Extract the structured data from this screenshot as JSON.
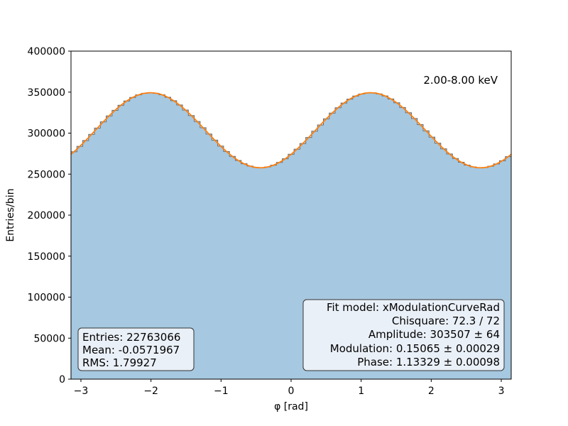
{
  "chart_data": {
    "type": "histogram",
    "xlabel": "φ [rad]",
    "ylabel": "Entries/bin",
    "xlim": [
      -3.14159,
      3.14159
    ],
    "ylim": [
      0,
      400000
    ],
    "x_ticks": [
      -3,
      -2,
      -1,
      0,
      1,
      2,
      3
    ],
    "x_tick_labels": [
      "−3",
      "−2",
      "−1",
      "0",
      "1",
      "2",
      "3"
    ],
    "y_ticks": [
      0,
      50000,
      100000,
      150000,
      200000,
      250000,
      300000,
      350000,
      400000
    ],
    "y_tick_labels": [
      "0",
      "50000",
      "100000",
      "150000",
      "200000",
      "250000",
      "300000",
      "350000",
      "400000"
    ],
    "n_bins": 75,
    "fit_model": {
      "amplitude": 303507,
      "modulation": 0.15065,
      "phase": 1.13329
    },
    "energy_label": "2.00-8.00 keV",
    "stats_box": [
      "Entries: 22763066",
      "Mean: -0.0571967",
      "RMS: 1.79927"
    ],
    "fit_box": [
      "Fit model: xModulationCurveRad",
      "Chisquare: 72.3 / 72",
      "Amplitude: 303507 ± 64",
      "Modulation: 0.15065 ± 0.00029",
      "Phase: 1.13329 ± 0.00098"
    ],
    "colors": {
      "histogram_fill": "#a6c8e0",
      "histogram_edge": "#666666",
      "fit_line": "#ff7f0e",
      "box_fill": "#eaf0f8",
      "box_edge": "#333333"
    }
  }
}
